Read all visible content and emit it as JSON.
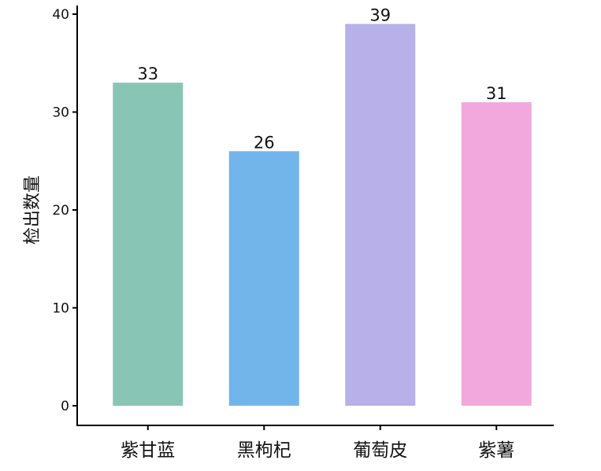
{
  "chart_data": {
    "type": "bar",
    "categories": [
      "紫甘蓝",
      "黑枸杞",
      "葡萄皮",
      "紫薯"
    ],
    "values": [
      33,
      26,
      39,
      31
    ],
    "data_labels": [
      "33",
      "26",
      "39",
      "31"
    ],
    "title": "",
    "xlabel": "",
    "ylabel": "检出数量",
    "ylim": [
      0,
      40
    ],
    "yticks": [
      0,
      10,
      20,
      30,
      40
    ],
    "ytick_labels": [
      "0",
      "10",
      "20",
      "30",
      "40"
    ],
    "grid": false,
    "legend": "none",
    "colors": [
      "#88c5b5",
      "#72b5eb",
      "#b8b0e8",
      "#f2a8dc"
    ]
  }
}
